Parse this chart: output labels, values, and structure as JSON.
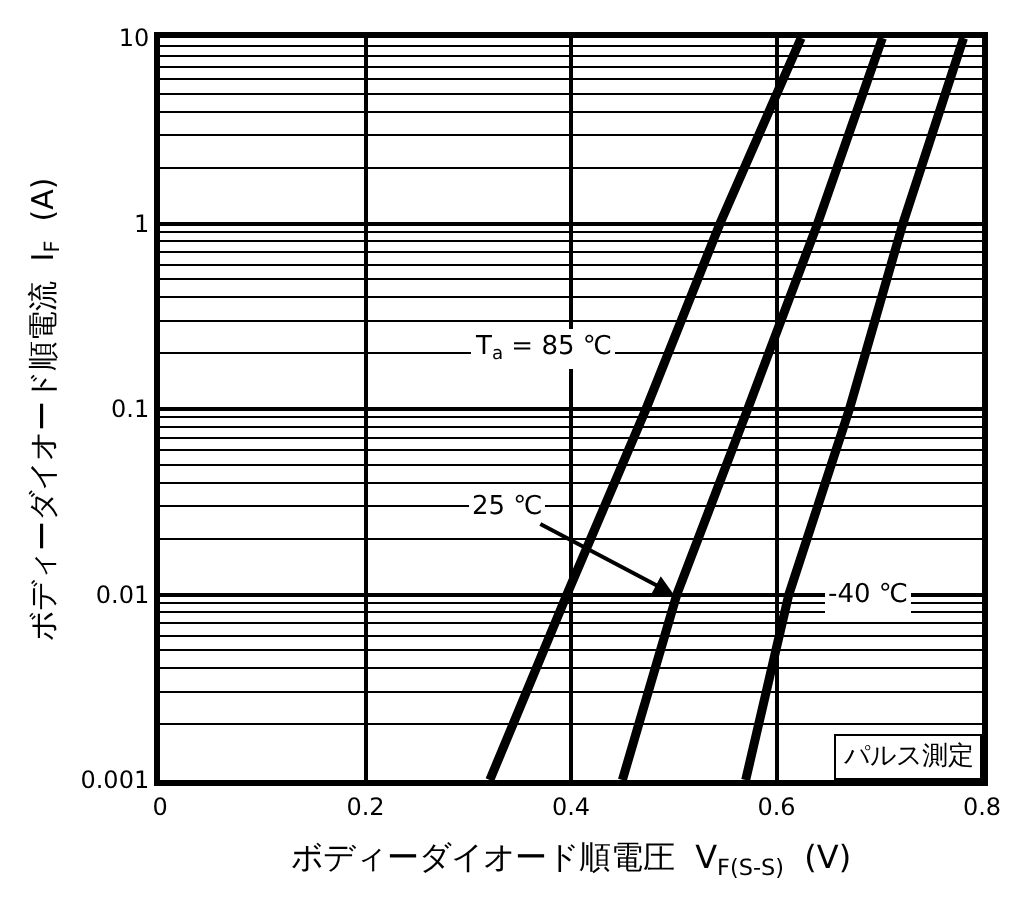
{
  "chart_data": {
    "type": "line",
    "xlabel": "ボディーダイオード順電圧  V$_{F(S-S)}$  (V)",
    "ylabel": "ボディーダイオード順電流  I$_{F}$  (A)",
    "series": [
      {
        "color": "#000000",
        "x": [
          0.321,
          0.396,
          0.473,
          0.545,
          0.624
        ],
        "values": [
          0.001,
          0.01,
          0.1,
          1,
          10
        ]
      },
      {
        "color": "#000000",
        "x": [
          0.45,
          0.503,
          0.572,
          0.64,
          0.703
        ],
        "values": [
          0.001,
          0.01,
          0.1,
          1,
          10
        ]
      },
      {
        "color": "#000000",
        "x": [
          0.57,
          0.612,
          0.671,
          0.723,
          0.782
        ],
        "values": [
          0.001,
          0.01,
          0.1,
          1,
          10
        ]
      }
    ],
    "annotations": [
      "T$_{a}$ = 85 ℃",
      {
        "text": "25 ℃",
        "x": 0.5,
        "y": 0.01
      },
      {
        "text": "-40 ℃",
        "x": 0.69,
        "y": 0.01
      },
      "パルス測定"
    ],
    "xlim": [
      0,
      0.8
    ],
    "xticks": [
      0,
      0.2,
      0.4,
      0.6,
      0.8
    ],
    "ylim": [
      0.001,
      10
    ],
    "yticks": [
      0.001,
      0.01,
      0.1,
      1,
      10
    ],
    "log": "y",
    "grid": true,
    "marker": "none",
    "line_style": "solid"
  }
}
